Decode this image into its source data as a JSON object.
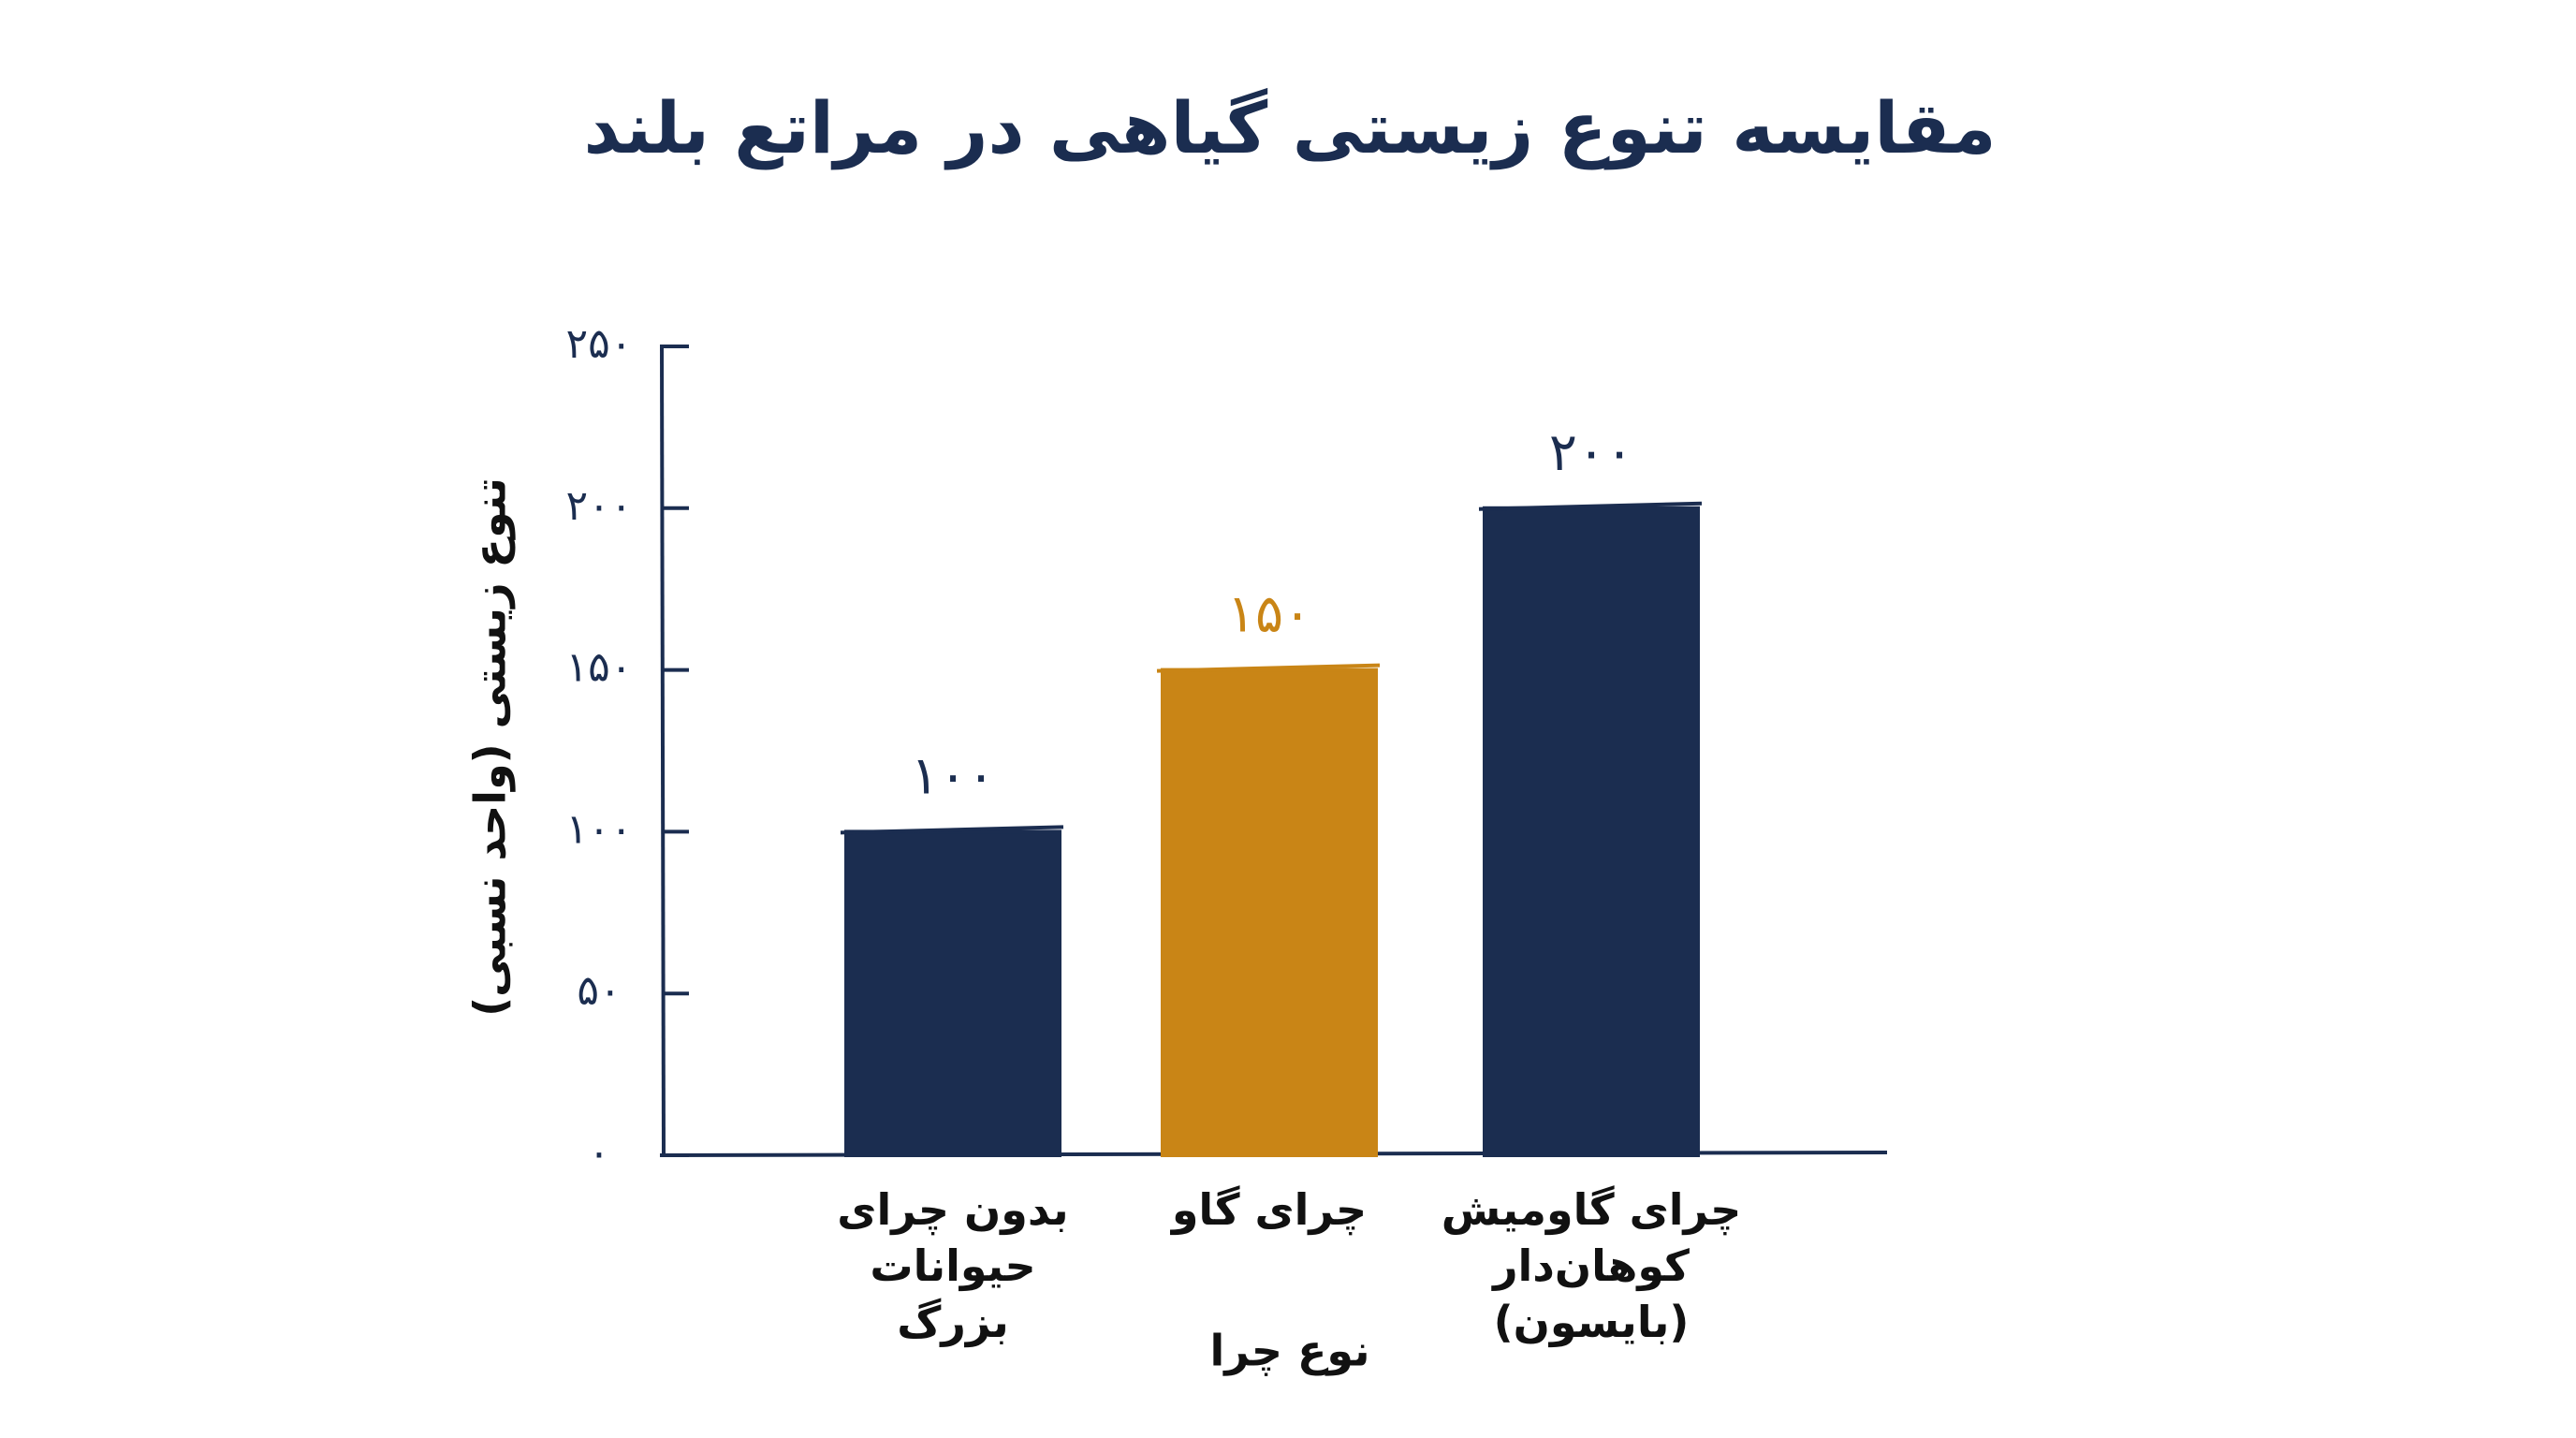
{
  "chart_data": {
    "type": "bar",
    "title": "مقایسه تنوع زیستی گیاهی در مراتع بلند",
    "x_label": "نوع چرا",
    "y_label": "تنوع زیستی (واحد نسبی)",
    "categories": [
      "بدون چرای حیوانات بزرگ",
      "چرای گاو",
      "چرای گاومیش کوهان‌دار (بایسون)"
    ],
    "values": [
      100,
      150,
      200
    ],
    "value_labels": [
      "۱۰۰",
      "۱۵۰",
      "۲۰۰"
    ],
    "colors": [
      "#1b2d50",
      "#c98516",
      "#1b2d50"
    ],
    "ylim": [
      0,
      250
    ],
    "yticks": [
      {
        "value": 0,
        "label": "۰"
      },
      {
        "value": 50,
        "label": "۵۰"
      },
      {
        "value": 100,
        "label": "۱۰۰"
      },
      {
        "value": 150,
        "label": "۱۵۰"
      },
      {
        "value": 200,
        "label": "۲۰۰"
      },
      {
        "value": 250,
        "label": "۲۵۰"
      }
    ],
    "grid": false
  }
}
